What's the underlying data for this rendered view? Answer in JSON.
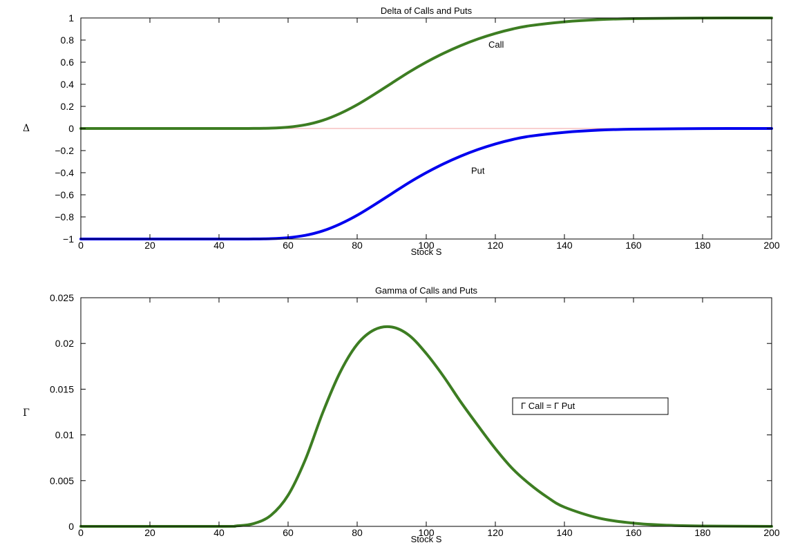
{
  "chart_data": [
    {
      "type": "line",
      "title": "Delta of Calls and Puts",
      "xlabel": "Stock S",
      "ylabel": "Δ",
      "xlim": [
        0,
        200
      ],
      "ylim": [
        -1,
        1
      ],
      "xticks": [
        "0",
        "20",
        "40",
        "60",
        "80",
        "100",
        "120",
        "140",
        "160",
        "180",
        "200"
      ],
      "yticks": [
        "−1",
        "−0.8",
        "−0.6",
        "−0.4",
        "−0.2",
        "0",
        "0.2",
        "0.4",
        "0.6",
        "0.8",
        "1"
      ],
      "grid": false,
      "zero_line_color": "#f2a0a0",
      "series": [
        {
          "name": "Call",
          "color": "#3d7d22",
          "x": [
            0,
            40,
            50,
            55,
            60,
            65,
            70,
            75,
            80,
            85,
            90,
            95,
            100,
            105,
            110,
            115,
            120,
            125,
            130,
            140,
            150,
            160,
            180,
            200
          ],
          "values": [
            0,
            0,
            0.0005,
            0.003,
            0.012,
            0.033,
            0.073,
            0.135,
            0.215,
            0.31,
            0.41,
            0.51,
            0.6,
            0.68,
            0.75,
            0.81,
            0.86,
            0.9,
            0.93,
            0.965,
            0.985,
            0.994,
            0.999,
            1
          ]
        },
        {
          "name": "Put",
          "color": "#0000ee",
          "x": [
            0,
            40,
            50,
            55,
            60,
            65,
            70,
            75,
            80,
            85,
            90,
            95,
            100,
            105,
            110,
            115,
            120,
            125,
            130,
            140,
            150,
            160,
            180,
            200
          ],
          "values": [
            -1,
            -1,
            -0.9995,
            -0.997,
            -0.988,
            -0.967,
            -0.927,
            -0.865,
            -0.785,
            -0.69,
            -0.59,
            -0.49,
            -0.4,
            -0.32,
            -0.25,
            -0.19,
            -0.14,
            -0.1,
            -0.07,
            -0.035,
            -0.015,
            -0.006,
            -0.001,
            0
          ]
        }
      ],
      "annotations": [
        {
          "text": "Call",
          "x": 118,
          "y": 0.73
        },
        {
          "text": "Put",
          "x": 113,
          "y": -0.41
        }
      ]
    },
    {
      "type": "line",
      "title": "Gamma of Calls and Puts",
      "xlabel": "Stock S",
      "ylabel": "Γ",
      "xlim": [
        0,
        200
      ],
      "ylim": [
        0,
        0.025
      ],
      "xticks": [
        "0",
        "20",
        "40",
        "60",
        "80",
        "100",
        "120",
        "140",
        "160",
        "180",
        "200"
      ],
      "yticks": [
        "0",
        "0.005",
        "0.01",
        "0.015",
        "0.02",
        "0.025"
      ],
      "grid": false,
      "series": [
        {
          "color": "#3d7d22",
          "x": [
            0,
            40,
            45,
            50,
            55,
            60,
            65,
            70,
            75,
            80,
            85,
            90,
            95,
            100,
            105,
            110,
            115,
            120,
            125,
            130,
            135,
            140,
            150,
            160,
            170,
            180,
            200
          ],
          "values": [
            0,
            0,
            5e-05,
            0.0003,
            0.0012,
            0.0034,
            0.0073,
            0.0124,
            0.0168,
            0.0199,
            0.0215,
            0.0218,
            0.0209,
            0.0189,
            0.0164,
            0.0136,
            0.011,
            0.0085,
            0.0063,
            0.0046,
            0.0032,
            0.0021,
            0.0009,
            0.00035,
            0.00012,
            4e-05,
            0
          ]
        }
      ],
      "legend": {
        "text": "Γ Call = Γ Put",
        "placement": "right"
      }
    }
  ]
}
